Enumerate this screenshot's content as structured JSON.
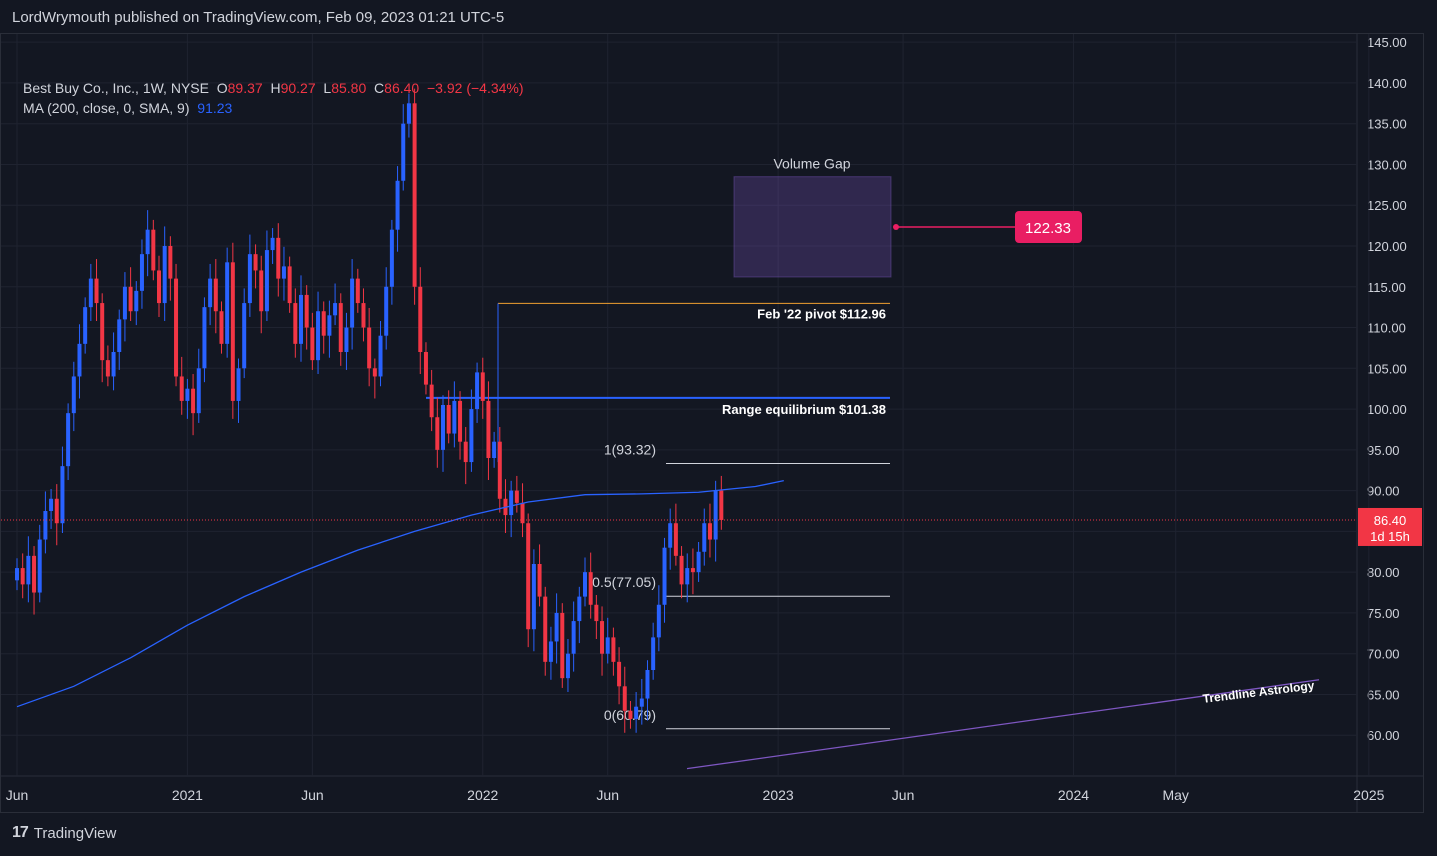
{
  "header": {
    "publisher": "LordWrymouth published on TradingView.com, Feb 09, 2023 01:21 UTC-5"
  },
  "legend": {
    "symbol": "Best Buy Co., Inc., 1W, NYSE",
    "o_label": "O",
    "o_value": "89.37",
    "h_label": "H",
    "h_value": "90.27",
    "l_label": "L",
    "l_value": "85.80",
    "c_label": "C",
    "c_value": "86.40",
    "change": "−3.92 (−4.34%)",
    "ma_label": "MA (200, close, 0, SMA, 9)",
    "ma_value": "91.23"
  },
  "footer": {
    "brand": "TradingView",
    "brand_mark": "17"
  },
  "colors": {
    "up": "#2962ff",
    "down": "#f23645",
    "ma": "#2962ff",
    "grid": "#1f2330",
    "text": "#d1d4dc",
    "badge": "#e91e63",
    "trendline": "#7e57c2",
    "pivot": "#f0a030"
  },
  "chart_data": {
    "type": "candlestick",
    "y_axis": {
      "ylim": [
        55,
        146
      ],
      "ticks": [
        "145.00",
        "140.00",
        "135.00",
        "130.00",
        "125.00",
        "120.00",
        "115.00",
        "110.00",
        "105.00",
        "100.00",
        "95.00",
        "90.00",
        "85.00",
        "80.00",
        "75.00",
        "70.00",
        "65.00",
        "60.00"
      ]
    },
    "x_axis": {
      "ticks": [
        {
          "label": "Jun",
          "week": 0
        },
        {
          "label": "2021",
          "week": 30
        },
        {
          "label": "Jun",
          "week": 52
        },
        {
          "label": "2022",
          "week": 82
        },
        {
          "label": "Jun",
          "week": 104
        },
        {
          "label": "2023",
          "week": 134
        },
        {
          "label": "Jun",
          "week": 156
        },
        {
          "label": "2024",
          "week": 186
        },
        {
          "label": "May",
          "week": 204
        },
        {
          "label": "2025",
          "week": 238
        }
      ]
    },
    "last_price": {
      "value": 86.4,
      "label": "86.40",
      "countdown": "1d 15h"
    },
    "series": [
      {
        "name": "Best Buy Co., Inc.",
        "type": "candlestick",
        "closes": [
          80.5,
          78.5,
          82.0,
          77.5,
          84.0,
          87.5,
          89.0,
          86.0,
          93.0,
          99.5,
          104.0,
          108.0,
          112.5,
          116.0,
          113.0,
          106.0,
          104.0,
          107.0,
          111.0,
          115.0,
          112.0,
          114.5,
          119.0,
          122.0,
          117.0,
          113.0,
          120.0,
          116.0,
          104.0,
          101.0,
          102.5,
          99.5,
          105.0,
          112.5,
          116.0,
          112.0,
          108.0,
          118.0,
          101.0,
          105.0,
          113.0,
          119.0,
          117.0,
          112.0,
          119.5,
          121.0,
          116.0,
          117.5,
          113.0,
          108.0,
          114.0,
          110.0,
          106.0,
          112.0,
          109.0,
          111.5,
          113.0,
          107.0,
          110.0,
          116.0,
          113.0,
          110.0,
          105.0,
          104.0,
          109.0,
          115.0,
          122.0,
          128.0,
          135.0,
          137.5,
          115.0,
          107.0,
          103.0,
          99.0,
          95.0,
          100.5,
          97.0,
          101.0,
          96.0,
          93.5,
          100.0,
          104.5,
          101.0,
          94.0,
          96.0,
          89.0,
          87.0,
          90.0,
          88.5,
          86.0,
          73.0,
          81.0,
          77.0,
          69.0,
          71.5,
          75.0,
          67.0,
          70.0,
          74.0,
          77.0,
          80.0,
          76.0,
          74.0,
          70.0,
          72.0,
          69.0,
          66.0,
          63.0,
          62.0,
          63.5,
          64.5,
          68.0,
          72.0,
          76.0,
          83.0,
          86.0,
          82.0,
          78.5,
          80.5,
          80.0,
          82.5,
          86.0,
          84.0,
          90.0,
          86.4
        ]
      },
      {
        "name": "MA (200, close, 0, SMA, 9)",
        "type": "line",
        "values": [
          {
            "week": 0,
            "value": 63.5
          },
          {
            "week": 10,
            "value": 66.0
          },
          {
            "week": 20,
            "value": 69.5
          },
          {
            "week": 30,
            "value": 73.5
          },
          {
            "week": 40,
            "value": 77.0
          },
          {
            "week": 50,
            "value": 80.0
          },
          {
            "week": 60,
            "value": 82.7
          },
          {
            "week": 70,
            "value": 85.0
          },
          {
            "week": 80,
            "value": 87.0
          },
          {
            "week": 90,
            "value": 88.6
          },
          {
            "week": 100,
            "value": 89.5
          },
          {
            "week": 110,
            "value": 89.6
          },
          {
            "week": 120,
            "value": 89.8
          },
          {
            "week": 130,
            "value": 90.5
          },
          {
            "week": 135,
            "value": 91.23
          }
        ]
      }
    ],
    "annotations": [
      {
        "type": "box",
        "label": "Volume Gap",
        "y_top": 128.5,
        "y_bottom": 116.2
      },
      {
        "type": "badge",
        "label": "122.33",
        "value": 122.33
      },
      {
        "type": "hline",
        "label": "Feb '22 pivot $112.96",
        "value": 112.96
      },
      {
        "type": "hline",
        "label": "Range equilibrium $101.38",
        "value": 101.38
      },
      {
        "type": "hline",
        "label": "1(93.32)",
        "value": 93.32
      },
      {
        "type": "hline",
        "label": "0.5(77.05)",
        "value": 77.05
      },
      {
        "type": "hline",
        "label": "0(60.79)",
        "value": 60.79
      },
      {
        "type": "trendline",
        "label": "Trendline Astrology",
        "from_value": 55.9,
        "to_value": 66.8
      }
    ]
  }
}
